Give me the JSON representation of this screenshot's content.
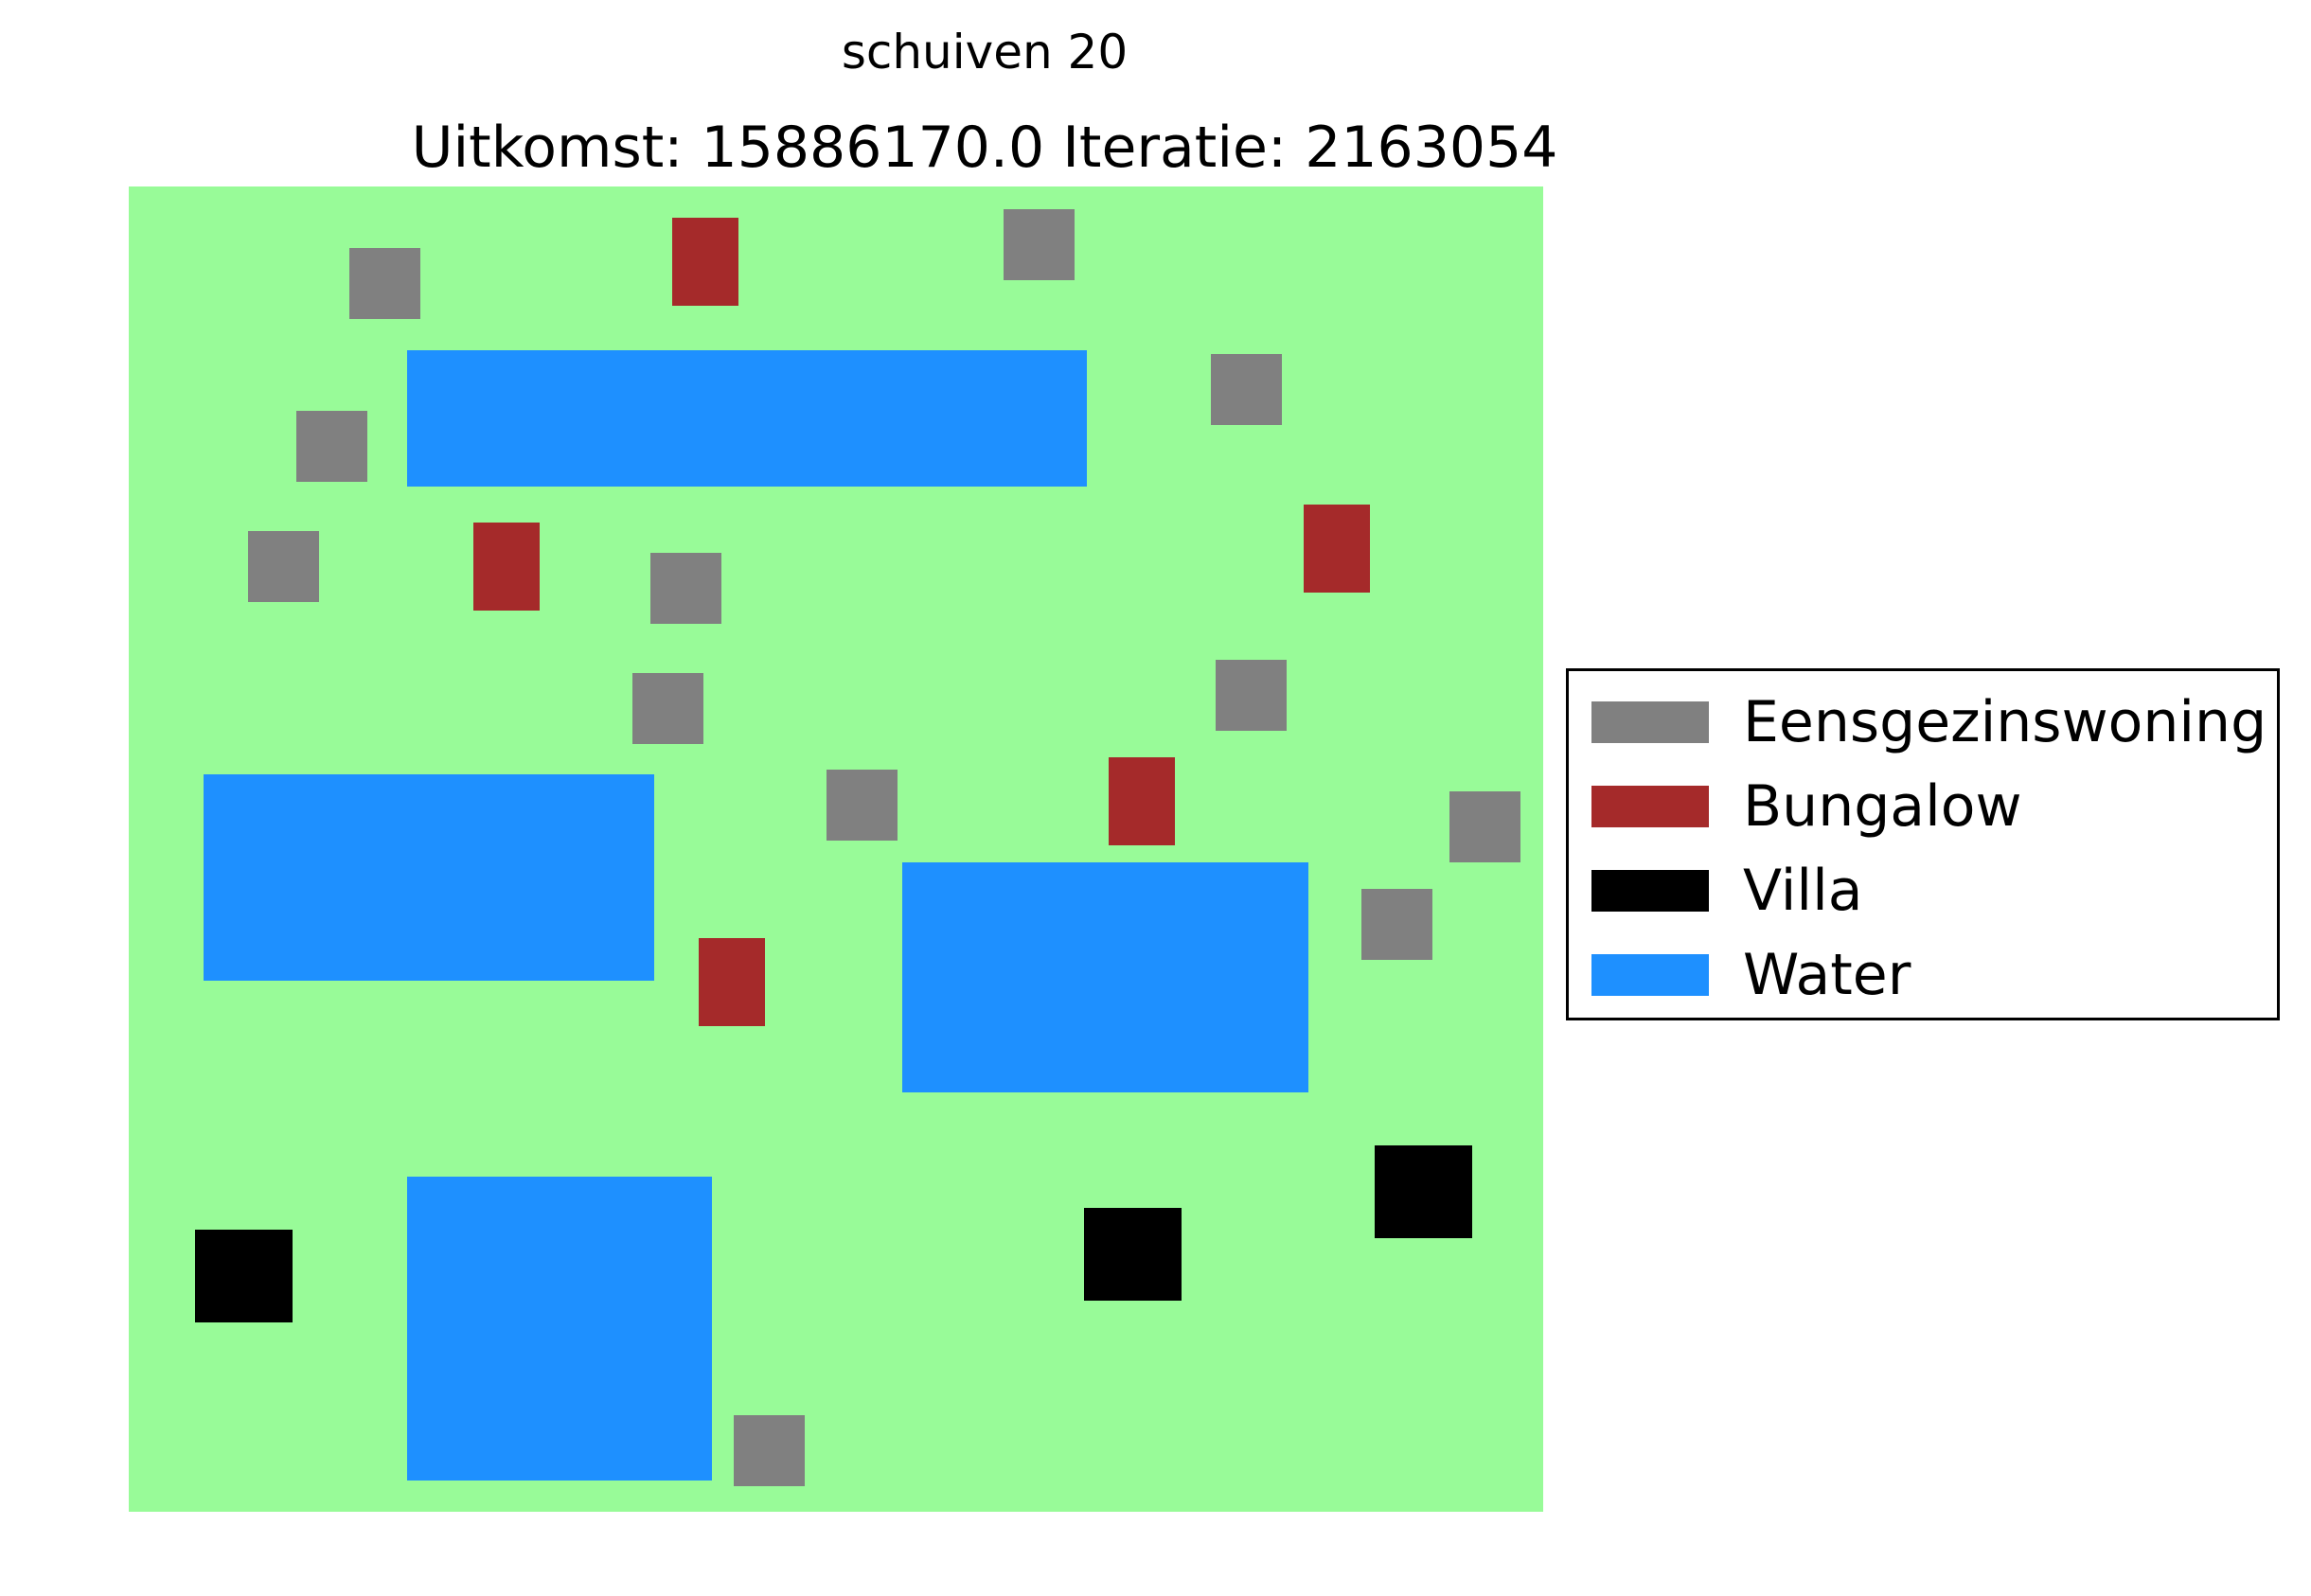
{
  "figure": {
    "suptitle": "schuiven 20",
    "title": "Uitkomst: 15886170.0 Iteratie: 2163054"
  },
  "colors": {
    "land": "#98fb98",
    "Eensgezinswoning": "#808080",
    "Bungalow": "#a52a2a",
    "Villa": "#000000",
    "Water": "#1e90ff"
  },
  "legend": {
    "items": [
      {
        "label": "Eensgezinswoning",
        "color": "#808080"
      },
      {
        "label": "Bungalow",
        "color": "#a52a2a"
      },
      {
        "label": "Villa",
        "color": "#000000"
      },
      {
        "label": "Water",
        "color": "#1e90ff"
      }
    ]
  }
}
